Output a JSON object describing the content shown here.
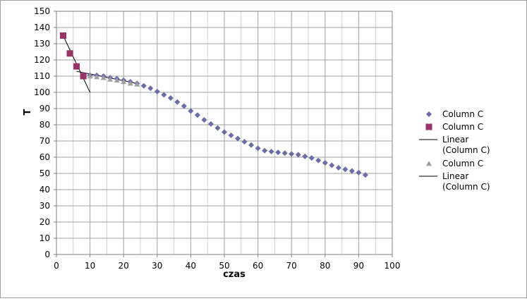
{
  "chart_data": {
    "type": "scatter",
    "xlabel": "czas",
    "ylabel": "T",
    "xlim": [
      0,
      100
    ],
    "ylim": [
      0,
      150
    ],
    "x_major_step": 10,
    "y_major_step": 10,
    "x_minor_step": 5,
    "grid": true,
    "legend_placement": "right",
    "x_ticks": [
      0,
      10,
      20,
      30,
      40,
      50,
      60,
      70,
      80,
      90,
      100
    ],
    "y_ticks": [
      0,
      10,
      20,
      30,
      40,
      50,
      60,
      70,
      80,
      90,
      100,
      110,
      120,
      130,
      140,
      150
    ],
    "series": [
      {
        "name": "Column C",
        "marker": "diamond",
        "color": "#6c6ca6",
        "x": [
          2,
          4,
          6,
          8,
          10,
          12,
          14,
          16,
          18,
          20,
          22,
          24,
          26,
          28,
          30,
          32,
          34,
          36,
          38,
          40,
          42,
          44,
          46,
          48,
          50,
          52,
          54,
          56,
          58,
          60,
          62,
          64,
          66,
          68,
          70,
          72,
          74,
          76,
          78,
          80,
          82,
          84,
          86,
          88,
          90,
          92
        ],
        "y": [
          135,
          124,
          116,
          111,
          110.5,
          110.5,
          110,
          109,
          108.5,
          107.5,
          106.5,
          105.5,
          104,
          102.5,
          100.5,
          98.5,
          96.5,
          94,
          91.5,
          88.5,
          86,
          83,
          80.5,
          78,
          75.5,
          73.5,
          71.5,
          69.5,
          67.5,
          65.5,
          64,
          63.5,
          63,
          62.5,
          62,
          61.5,
          60.5,
          59.5,
          58,
          56.5,
          55,
          53.5,
          52.5,
          51.5,
          50.5,
          49
        ]
      },
      {
        "name": "Column C",
        "marker": "square",
        "color": "#993366",
        "x": [
          2,
          4,
          6,
          8
        ],
        "y": [
          135,
          124,
          116,
          110
        ]
      },
      {
        "name": "Linear\n(Column C)",
        "type": "trendline",
        "color": "#000000",
        "x": [
          2,
          10
        ],
        "y": [
          135,
          100
        ]
      },
      {
        "name": "Column C",
        "marker": "triangle",
        "color": "#a0a0a0",
        "x": [
          10,
          12,
          14,
          16,
          18,
          20,
          22,
          24
        ],
        "y": [
          110,
          109.5,
          109,
          108,
          107.5,
          106.5,
          105.5,
          105
        ]
      },
      {
        "name": "Linear\n(Column C)",
        "type": "trendline",
        "color": "#000000",
        "x": [
          6,
          24
        ],
        "y": [
          113,
          105.5
        ]
      }
    ]
  }
}
